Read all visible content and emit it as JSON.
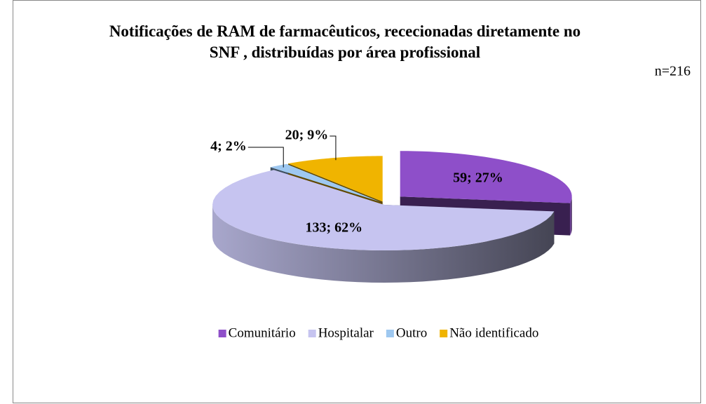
{
  "chart_data": {
    "type": "pie",
    "title": "Notificações de RAM de farmacêuticos, rececionadas diretamente no SNF , distribuídas por área profissional",
    "annotation": "n=216",
    "categories": [
      "Comunitário",
      "Hospitalar",
      "Outro",
      "Não identificado"
    ],
    "values": [
      59,
      133,
      4,
      20
    ],
    "value_labels": [
      "59; 27%",
      "133; 62%",
      "4; 2%",
      "20; 9%"
    ],
    "colors": [
      "#8e4fc9",
      "#c6c4f0",
      "#9ec8f0",
      "#f0b400"
    ],
    "legend": "bottom"
  }
}
